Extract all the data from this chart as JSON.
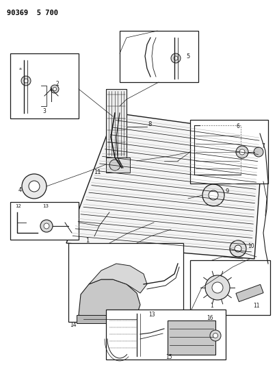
{
  "title": "90369  5 700",
  "background_color": "#ffffff",
  "line_color": "#1a1a1a",
  "figsize": [
    4.06,
    5.33
  ],
  "dpi": 100
}
